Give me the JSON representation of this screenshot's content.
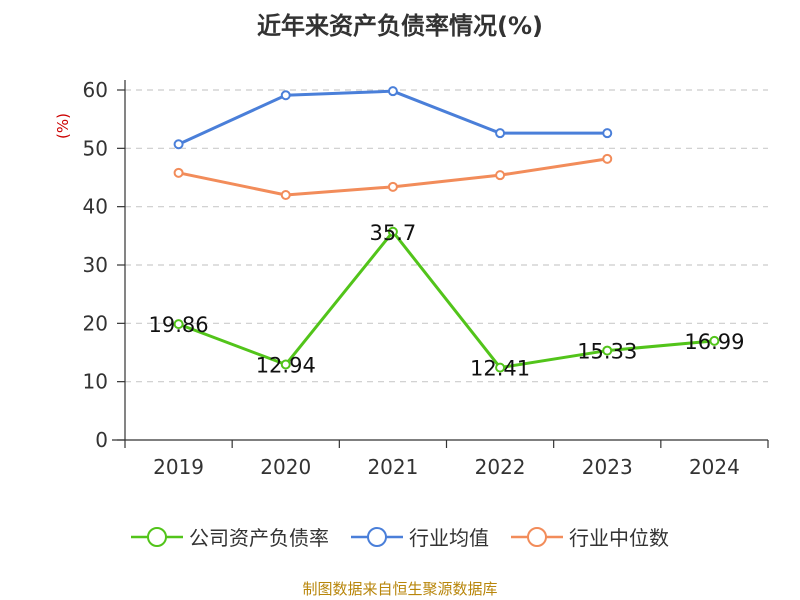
{
  "title": "近年来资产负债率情况(%)",
  "source": "制图数据来自恒生聚源数据库",
  "chart_data": {
    "type": "line",
    "title": "近年来资产负债率情况(%)",
    "ylabel": "(%)",
    "xlabel": "",
    "categories": [
      "2019",
      "2020",
      "2021",
      "2022",
      "2023",
      "2024"
    ],
    "ylim": [
      0,
      60
    ],
    "yticks": [
      0,
      10,
      20,
      30,
      40,
      50,
      60
    ],
    "grid": true,
    "legend_position": "bottom",
    "series": [
      {
        "name": "公司资产负债率",
        "color": "#52c41a",
        "values": [
          19.86,
          12.94,
          35.7,
          12.41,
          15.33,
          16.99
        ],
        "labels": [
          "19.86",
          "12.94",
          "35.7",
          "12.41",
          "15.33",
          "16.99"
        ]
      },
      {
        "name": "行业均值",
        "color": "#4a7fd9",
        "values": [
          50.7,
          59.1,
          59.8,
          52.6,
          52.6,
          null
        ]
      },
      {
        "name": "行业中位数",
        "color": "#f28c5a",
        "values": [
          45.8,
          42.0,
          43.4,
          45.4,
          48.2,
          null
        ]
      }
    ]
  }
}
